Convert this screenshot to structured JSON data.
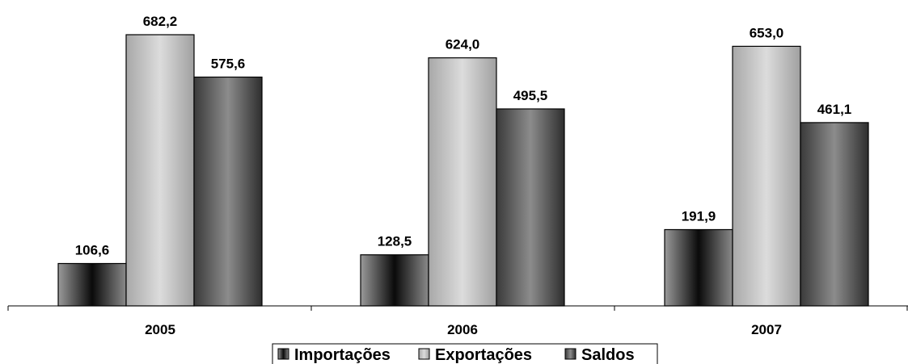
{
  "chart_data": {
    "type": "bar",
    "categories": [
      "2005",
      "2006",
      "2007"
    ],
    "series": [
      {
        "name": "Importações",
        "values": [
          106.6,
          128.5,
          191.9
        ],
        "labels": [
          "106,6",
          "128,5",
          "191,9"
        ],
        "color": "#5a5a5a"
      },
      {
        "name": "Exportações",
        "values": [
          682.2,
          624.0,
          653.0
        ],
        "labels": [
          "682,2",
          "624,0",
          "653,0"
        ],
        "color": "#c4c4c4"
      },
      {
        "name": "Saldos",
        "values": [
          575.6,
          495.5,
          461.1
        ],
        "labels": [
          "575,6",
          "495,5",
          "461,1"
        ],
        "color": "#6e6e6e"
      }
    ],
    "ylim": [
      0,
      682.2
    ],
    "grid": false,
    "legend": "bottom"
  }
}
